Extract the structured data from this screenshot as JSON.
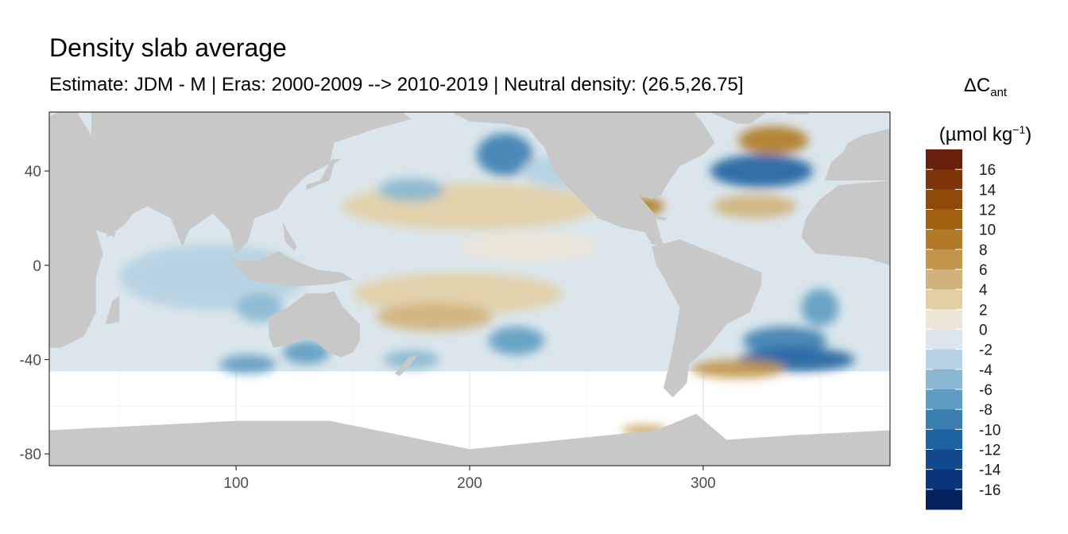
{
  "chart_data": {
    "type": "heatmap",
    "title": "Density slab average",
    "subtitle": "Estimate: JDM - M | Eras: 2000-2009 --> 2010-2019 | Neutral density: (26.5,26.75]",
    "xlabel": "",
    "ylabel": "",
    "xlim": [
      20,
      380
    ],
    "ylim": [
      -85,
      65
    ],
    "x_ticks": [
      100,
      200,
      300
    ],
    "y_ticks": [
      40,
      0,
      -40,
      -80
    ],
    "grid": true,
    "legend": {
      "title_main": "ΔC",
      "title_sub": "ant",
      "unit_pre": "(µmol kg",
      "unit_sup": "−1",
      "unit_post": ")",
      "placement": "right",
      "labels": [
        "16",
        "14",
        "12",
        "10",
        "8",
        "6",
        "4",
        "2",
        "0",
        "-2",
        "-4",
        "-6",
        "-8",
        "-10",
        "-12",
        "-14",
        "-16"
      ],
      "colors": [
        "#67200c",
        "#7d3408",
        "#8f4a0a",
        "#a0620f",
        "#b07a26",
        "#c1954b",
        "#d1b27a",
        "#e2cfa5",
        "#ede5d6",
        "#dbe6ec",
        "#b6d1e1",
        "#8ab8d2",
        "#5e9cc1",
        "#3a7fb0",
        "#1f62a0",
        "#114a8d",
        "#09357a",
        "#03205f"
      ]
    },
    "land_color": "#c8c8c8",
    "no_data_color": "#ffffff",
    "regions": [
      {
        "lon": 200,
        "lat": 25,
        "rx": 55,
        "ry": 10,
        "value": 3
      },
      {
        "lon": 195,
        "lat": -12,
        "rx": 45,
        "ry": 9,
        "value": 4
      },
      {
        "lon": 185,
        "lat": -22,
        "rx": 25,
        "ry": 6,
        "value": 5
      },
      {
        "lon": 215,
        "lat": 47,
        "rx": 12,
        "ry": 9,
        "value": -8
      },
      {
        "lon": 175,
        "lat": 32,
        "rx": 14,
        "ry": 5,
        "value": -5
      },
      {
        "lon": 240,
        "lat": 40,
        "rx": 18,
        "ry": 7,
        "value": -3
      },
      {
        "lon": 225,
        "lat": 8,
        "rx": 30,
        "ry": 6,
        "value": 2
      },
      {
        "lon": 90,
        "lat": -5,
        "rx": 40,
        "ry": 14,
        "value": -2
      },
      {
        "lon": 130,
        "lat": -37,
        "rx": 10,
        "ry": 5,
        "value": -7
      },
      {
        "lon": 105,
        "lat": -42,
        "rx": 12,
        "ry": 4,
        "value": -6
      },
      {
        "lon": 220,
        "lat": -32,
        "rx": 12,
        "ry": 6,
        "value": -6
      },
      {
        "lon": 175,
        "lat": -40,
        "rx": 12,
        "ry": 4,
        "value": -4
      },
      {
        "lon": 325,
        "lat": 40,
        "rx": 22,
        "ry": 7,
        "value": -10
      },
      {
        "lon": 330,
        "lat": 53,
        "rx": 15,
        "ry": 6,
        "value": 10
      },
      {
        "lon": 322,
        "lat": 25,
        "rx": 18,
        "ry": 5,
        "value": 6
      },
      {
        "lon": 335,
        "lat": -32,
        "rx": 18,
        "ry": 6,
        "value": -9
      },
      {
        "lon": 340,
        "lat": -40,
        "rx": 25,
        "ry": 5,
        "value": -10
      },
      {
        "lon": 315,
        "lat": -44,
        "rx": 20,
        "ry": 4,
        "value": 8
      },
      {
        "lon": 350,
        "lat": -18,
        "rx": 8,
        "ry": 8,
        "value": -7
      },
      {
        "lon": 275,
        "lat": 25,
        "rx": 8,
        "ry": 4,
        "value": 10
      },
      {
        "lon": 275,
        "lat": -70,
        "rx": 10,
        "ry": 2,
        "value": 7
      },
      {
        "lon": 110,
        "lat": -18,
        "rx": 10,
        "ry": 6,
        "value": -4
      }
    ]
  }
}
